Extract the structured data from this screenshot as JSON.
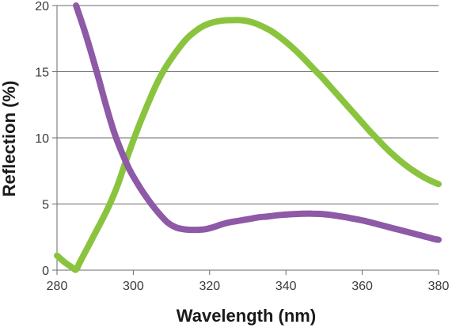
{
  "chart_data": {
    "type": "line",
    "title": "",
    "xlabel": "Wavelength (nm)",
    "ylabel": "Reflection (%)",
    "xlim": [
      280,
      380
    ],
    "ylim": [
      0,
      20
    ],
    "x_ticks": [
      280,
      300,
      320,
      340,
      360,
      380
    ],
    "y_ticks": [
      0,
      5,
      10,
      15,
      20
    ],
    "x_tick_labels": [
      "280",
      "300",
      "320",
      "340",
      "360",
      "380"
    ],
    "y_tick_labels": [
      "0",
      "5",
      "10",
      "15",
      "20"
    ],
    "grid": "horizontal",
    "legend": "none",
    "series": [
      {
        "color": "#8ac43f",
        "x": [
          280,
          282,
          284,
          285,
          286,
          288,
          290,
          292,
          294,
          296,
          298,
          300,
          302,
          304,
          306,
          308,
          310,
          312,
          314,
          316,
          318,
          320,
          322,
          324,
          326,
          328,
          330,
          332,
          334,
          336,
          338,
          340,
          342,
          344,
          346,
          348,
          350,
          352,
          354,
          356,
          358,
          360,
          362,
          364,
          366,
          368,
          370,
          372,
          374,
          376,
          378,
          380
        ],
        "values": [
          1.1,
          0.6,
          0.2,
          0.05,
          0.6,
          1.7,
          2.8,
          3.9,
          5.1,
          6.5,
          8.2,
          9.8,
          11.3,
          12.7,
          14.0,
          15.1,
          16.0,
          16.8,
          17.5,
          18.0,
          18.4,
          18.65,
          18.8,
          18.88,
          18.9,
          18.9,
          18.82,
          18.65,
          18.4,
          18.1,
          17.7,
          17.25,
          16.75,
          16.2,
          15.6,
          15.0,
          14.4,
          13.75,
          13.1,
          12.45,
          11.8,
          11.15,
          10.5,
          9.9,
          9.3,
          8.75,
          8.25,
          7.8,
          7.4,
          7.05,
          6.75,
          6.5
        ]
      },
      {
        "color": "#8e59a6",
        "x": [
          285,
          287,
          289,
          291,
          293,
          295,
          297,
          299,
          301,
          303,
          305,
          307,
          309,
          311,
          313,
          315,
          317,
          319,
          321,
          323,
          325,
          327,
          329,
          331,
          333,
          335,
          337,
          339,
          341,
          343,
          345,
          347,
          349,
          351,
          353,
          355,
          357,
          359,
          361,
          363,
          365,
          367,
          369,
          371,
          373,
          375,
          377,
          379,
          380
        ],
        "values": [
          20.0,
          18.3,
          16.4,
          14.4,
          12.3,
          10.4,
          8.9,
          7.6,
          6.6,
          5.7,
          4.9,
          4.2,
          3.6,
          3.25,
          3.1,
          3.05,
          3.05,
          3.1,
          3.25,
          3.45,
          3.6,
          3.7,
          3.8,
          3.9,
          4.0,
          4.05,
          4.12,
          4.18,
          4.22,
          4.25,
          4.27,
          4.27,
          4.25,
          4.2,
          4.12,
          4.03,
          3.93,
          3.82,
          3.7,
          3.55,
          3.4,
          3.25,
          3.1,
          2.95,
          2.8,
          2.65,
          2.5,
          2.35,
          2.3
        ]
      }
    ]
  }
}
